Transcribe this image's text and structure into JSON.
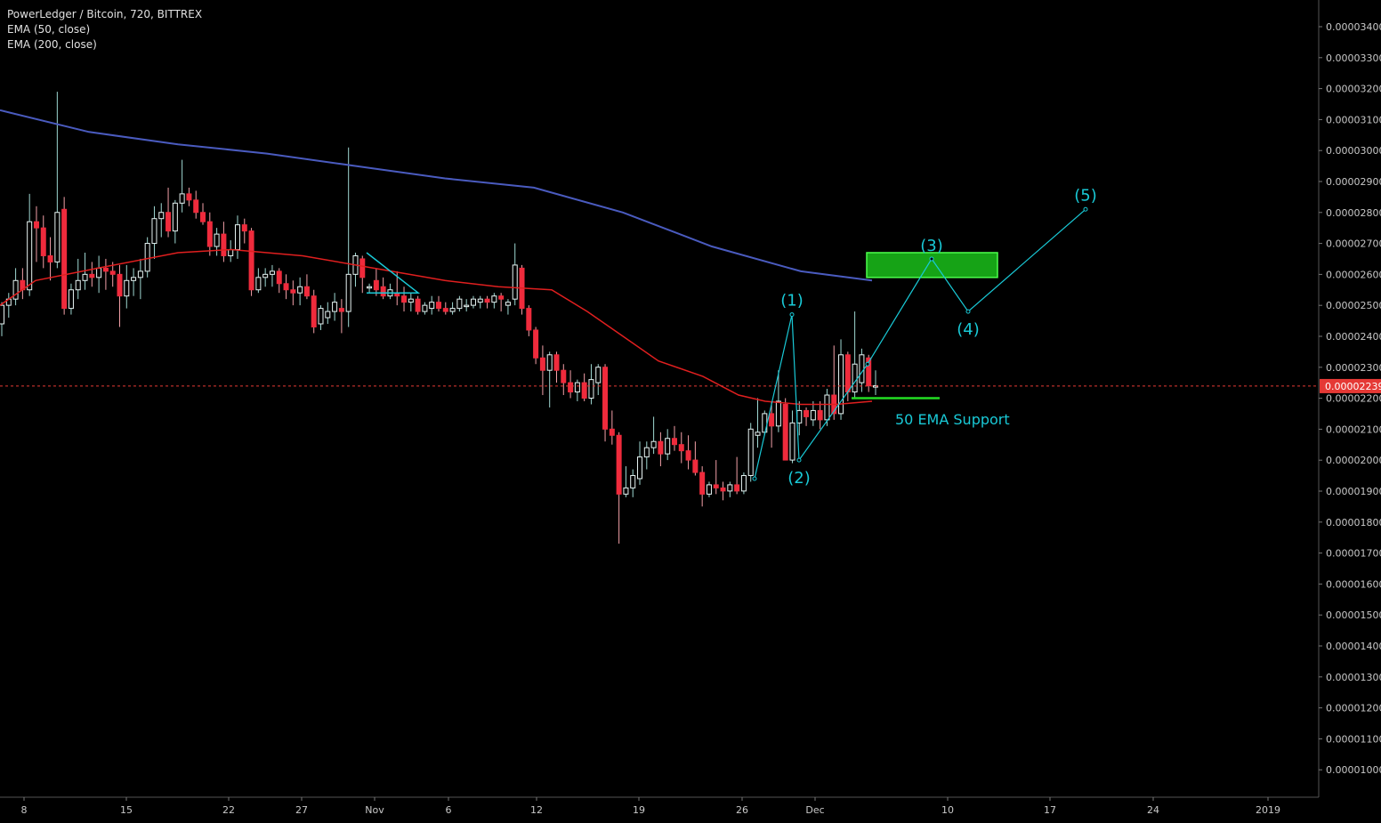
{
  "legend": {
    "title": "PowerLedger / Bitcoin, 720, BITTREX",
    "ema50": "EMA (50, close)",
    "ema200": "EMA (200, close)"
  },
  "colors": {
    "background": "#000000",
    "up": "#26a69a",
    "down": "#ef2b3c",
    "ema50": "#e01f1f",
    "ema200": "#4a5bbf",
    "annotation": "#19c9d6",
    "target_box": "#16a316",
    "support": "#22dd22",
    "price_line": "#e53935"
  },
  "price_axis": {
    "ticks": [
      "0.00003400",
      "0.00003300",
      "0.00003200",
      "0.00003100",
      "0.00003000",
      "0.00002900",
      "0.00002800",
      "0.00002700",
      "0.00002600",
      "0.00002500",
      "0.00002400",
      "0.00002300",
      "0.00002200",
      "0.00002100",
      "0.00002000",
      "0.00001900",
      "0.00001800",
      "0.00001700",
      "0.00001600",
      "0.00001500",
      "0.00001400",
      "0.00001300",
      "0.00001200",
      "0.00001100",
      "0.00001000"
    ],
    "current_price": "0.00002239"
  },
  "time_axis": {
    "labels": [
      "8",
      "15",
      "22",
      "27",
      "Nov",
      "6",
      "12",
      "19",
      "26",
      "Dec",
      "10",
      "17",
      "24",
      "2019"
    ]
  },
  "annotations": {
    "wave_labels": [
      "(1)",
      "(2)",
      "(3)",
      "(4)",
      "(5)"
    ],
    "support_text": "50 EMA Support"
  },
  "chart_data": {
    "type": "candlestick",
    "symbol": "PowerLedger / Bitcoin",
    "interval": "720",
    "exchange": "BITTREX",
    "ylim": [
      9.3e-06,
      3.49e-05
    ],
    "ylabel": "",
    "xlabel": "",
    "candles": [
      [
        2.44e-05,
        2.51e-05,
        2.4e-05,
        2.5e-05
      ],
      [
        2.5e-05,
        2.54e-05,
        2.46e-05,
        2.52e-05
      ],
      [
        2.52e-05,
        2.62e-05,
        2.5e-05,
        2.58e-05
      ],
      [
        2.58e-05,
        2.62e-05,
        2.52e-05,
        2.55e-05
      ],
      [
        2.55e-05,
        2.86e-05,
        2.53e-05,
        2.77e-05
      ],
      [
        2.77e-05,
        2.82e-05,
        2.64e-05,
        2.75e-05
      ],
      [
        2.75e-05,
        2.79e-05,
        2.62e-05,
        2.66e-05
      ],
      [
        2.66e-05,
        2.72e-05,
        2.58e-05,
        2.64e-05
      ],
      [
        2.64e-05,
        3.19e-05,
        2.62e-05,
        2.8e-05
      ],
      [
        2.81e-05,
        2.85e-05,
        2.47e-05,
        2.49e-05
      ],
      [
        2.49e-05,
        2.57e-05,
        2.47e-05,
        2.55e-05
      ],
      [
        2.55e-05,
        2.65e-05,
        2.52e-05,
        2.58e-05
      ],
      [
        2.58e-05,
        2.67e-05,
        2.55e-05,
        2.6e-05
      ],
      [
        2.6e-05,
        2.64e-05,
        2.56e-05,
        2.59e-05
      ],
      [
        2.59e-05,
        2.66e-05,
        2.54e-05,
        2.62e-05
      ],
      [
        2.62e-05,
        2.65e-05,
        2.55e-05,
        2.61e-05
      ],
      [
        2.61e-05,
        2.64e-05,
        2.56e-05,
        2.6e-05
      ],
      [
        2.6e-05,
        2.63e-05,
        2.43e-05,
        2.53e-05
      ],
      [
        2.53e-05,
        2.63e-05,
        2.49e-05,
        2.58e-05
      ],
      [
        2.58e-05,
        2.62e-05,
        2.53e-05,
        2.59e-05
      ],
      [
        2.59e-05,
        2.65e-05,
        2.52e-05,
        2.61e-05
      ],
      [
        2.61e-05,
        2.72e-05,
        2.59e-05,
        2.7e-05
      ],
      [
        2.7e-05,
        2.82e-05,
        2.65e-05,
        2.78e-05
      ],
      [
        2.78e-05,
        2.83e-05,
        2.72e-05,
        2.8e-05
      ],
      [
        2.8e-05,
        2.88e-05,
        2.72e-05,
        2.74e-05
      ],
      [
        2.74e-05,
        2.84e-05,
        2.7e-05,
        2.83e-05
      ],
      [
        2.83e-05,
        2.97e-05,
        2.8e-05,
        2.86e-05
      ],
      [
        2.86e-05,
        2.88e-05,
        2.82e-05,
        2.84e-05
      ],
      [
        2.84e-05,
        2.87e-05,
        2.78e-05,
        2.8e-05
      ],
      [
        2.8e-05,
        2.83e-05,
        2.76e-05,
        2.77e-05
      ],
      [
        2.77e-05,
        2.8e-05,
        2.66e-05,
        2.69e-05
      ],
      [
        2.69e-05,
        2.75e-05,
        2.66e-05,
        2.73e-05
      ],
      [
        2.73e-05,
        2.77e-05,
        2.64e-05,
        2.66e-05
      ],
      [
        2.66e-05,
        2.71e-05,
        2.64e-05,
        2.68e-05
      ],
      [
        2.68e-05,
        2.79e-05,
        2.65e-05,
        2.76e-05
      ],
      [
        2.76e-05,
        2.78e-05,
        2.7e-05,
        2.74e-05
      ],
      [
        2.74e-05,
        2.75e-05,
        2.53e-05,
        2.55e-05
      ],
      [
        2.55e-05,
        2.62e-05,
        2.54e-05,
        2.59e-05
      ],
      [
        2.59e-05,
        2.62e-05,
        2.56e-05,
        2.6e-05
      ],
      [
        2.6e-05,
        2.63e-05,
        2.56e-05,
        2.61e-05
      ],
      [
        2.61e-05,
        2.62e-05,
        2.54e-05,
        2.57e-05
      ],
      [
        2.57e-05,
        2.6e-05,
        2.52e-05,
        2.55e-05
      ],
      [
        2.55e-05,
        2.58e-05,
        2.5e-05,
        2.54e-05
      ],
      [
        2.54e-05,
        2.59e-05,
        2.5e-05,
        2.56e-05
      ],
      [
        2.56e-05,
        2.6e-05,
        2.52e-05,
        2.53e-05
      ],
      [
        2.53e-05,
        2.55e-05,
        2.41e-05,
        2.43e-05
      ],
      [
        2.44e-05,
        2.5e-05,
        2.42e-05,
        2.49e-05
      ],
      [
        2.46e-05,
        2.51e-05,
        2.44e-05,
        2.48e-05
      ],
      [
        2.48e-05,
        2.54e-05,
        2.45e-05,
        2.51e-05
      ],
      [
        2.49e-05,
        2.52e-05,
        2.41e-05,
        2.48e-05
      ],
      [
        2.48e-05,
        3.01e-05,
        2.43e-05,
        2.6e-05
      ],
      [
        2.6e-05,
        2.67e-05,
        2.56e-05,
        2.66e-05
      ],
      [
        2.65e-05,
        2.66e-05,
        2.54e-05,
        2.59e-05
      ],
      [
        2.56e-05,
        2.57e-05,
        2.54e-05,
        2.56e-05
      ],
      [
        2.58e-05,
        2.62e-05,
        2.53e-05,
        2.55e-05
      ],
      [
        2.56e-05,
        2.59e-05,
        2.52e-05,
        2.53e-05
      ],
      [
        2.53e-05,
        2.57e-05,
        2.52e-05,
        2.55e-05
      ],
      [
        2.54e-05,
        2.61e-05,
        2.5e-05,
        2.53e-05
      ],
      [
        2.53e-05,
        2.56e-05,
        2.48e-05,
        2.51e-05
      ],
      [
        2.51e-05,
        2.54e-05,
        2.48e-05,
        2.52e-05
      ],
      [
        2.52e-05,
        2.53e-05,
        2.47e-05,
        2.48e-05
      ],
      [
        2.48e-05,
        2.51e-05,
        2.47e-05,
        2.5e-05
      ],
      [
        2.49e-05,
        2.53e-05,
        2.47e-05,
        2.51e-05
      ],
      [
        2.51e-05,
        2.53e-05,
        2.48e-05,
        2.49e-05
      ],
      [
        2.49e-05,
        2.51e-05,
        2.47e-05,
        2.48e-05
      ],
      [
        2.48e-05,
        2.51e-05,
        2.47e-05,
        2.49e-05
      ],
      [
        2.49e-05,
        2.53e-05,
        2.48e-05,
        2.52e-05
      ],
      [
        2.5e-05,
        2.52e-05,
        2.48e-05,
        2.5e-05
      ],
      [
        2.5e-05,
        2.53e-05,
        2.49e-05,
        2.52e-05
      ],
      [
        2.51e-05,
        2.53e-05,
        2.49e-05,
        2.52e-05
      ],
      [
        2.52e-05,
        2.53e-05,
        2.49e-05,
        2.51e-05
      ],
      [
        2.51e-05,
        2.54e-05,
        2.49e-05,
        2.53e-05
      ],
      [
        2.53e-05,
        2.54e-05,
        2.48e-05,
        2.52e-05
      ],
      [
        2.5e-05,
        2.52e-05,
        2.47e-05,
        2.51e-05
      ],
      [
        2.52e-05,
        2.7e-05,
        2.5e-05,
        2.63e-05
      ],
      [
        2.62e-05,
        2.63e-05,
        2.47e-05,
        2.49e-05
      ],
      [
        2.49e-05,
        2.5e-05,
        2.4e-05,
        2.42e-05
      ],
      [
        2.42e-05,
        2.43e-05,
        2.31e-05,
        2.33e-05
      ],
      [
        2.33e-05,
        2.37e-05,
        2.21e-05,
        2.29e-05
      ],
      [
        2.29e-05,
        2.35e-05,
        2.17e-05,
        2.34e-05
      ],
      [
        2.34e-05,
        2.35e-05,
        2.25e-05,
        2.29e-05
      ],
      [
        2.29e-05,
        2.31e-05,
        2.21e-05,
        2.25e-05
      ],
      [
        2.25e-05,
        2.29e-05,
        2.2e-05,
        2.22e-05
      ],
      [
        2.22e-05,
        2.26e-05,
        2.19e-05,
        2.25e-05
      ],
      [
        2.25e-05,
        2.28e-05,
        2.19e-05,
        2.2e-05
      ],
      [
        2.2e-05,
        2.31e-05,
        2.18e-05,
        2.26e-05
      ],
      [
        2.25e-05,
        2.31e-05,
        2.21e-05,
        2.3e-05
      ],
      [
        2.3e-05,
        2.31e-05,
        2.06e-05,
        2.1e-05
      ],
      [
        2.1e-05,
        2.16e-05,
        2.05e-05,
        2.08e-05
      ],
      [
        2.08e-05,
        2.09e-05,
        1.73e-05,
        1.89e-05
      ],
      [
        1.89e-05,
        1.98e-05,
        1.88e-05,
        1.91e-05
      ],
      [
        1.91e-05,
        1.97e-05,
        1.88e-05,
        1.95e-05
      ],
      [
        1.94e-05,
        2.06e-05,
        1.92e-05,
        2.01e-05
      ],
      [
        2.01e-05,
        2.06e-05,
        1.97e-05,
        2.04e-05
      ],
      [
        2.04e-05,
        2.14e-05,
        2.02e-05,
        2.06e-05
      ],
      [
        2.06e-05,
        2.09e-05,
        1.98e-05,
        2.02e-05
      ],
      [
        2.02e-05,
        2.1e-05,
        2e-05,
        2.07e-05
      ],
      [
        2.07e-05,
        2.11e-05,
        2.03e-05,
        2.05e-05
      ],
      [
        2.05e-05,
        2.09e-05,
        1.99e-05,
        2.03e-05
      ],
      [
        2.03e-05,
        2.08e-05,
        1.97e-05,
        2e-05
      ],
      [
        2e-05,
        2.06e-05,
        1.95e-05,
        1.96e-05
      ],
      [
        1.96e-05,
        1.98e-05,
        1.85e-05,
        1.89e-05
      ],
      [
        1.89e-05,
        1.93e-05,
        1.88e-05,
        1.92e-05
      ],
      [
        1.92e-05,
        2e-05,
        1.89e-05,
        1.91e-05
      ],
      [
        1.91e-05,
        1.93e-05,
        1.87e-05,
        1.9e-05
      ],
      [
        1.9e-05,
        1.93e-05,
        1.88e-05,
        1.92e-05
      ],
      [
        1.92e-05,
        2.01e-05,
        1.89e-05,
        1.9e-05
      ],
      [
        1.9e-05,
        1.96e-05,
        1.89e-05,
        1.95e-05
      ],
      [
        1.95e-05,
        2.12e-05,
        1.93e-05,
        2.1e-05
      ],
      [
        2.08e-05,
        2.2e-05,
        2.04e-05,
        2.09e-05
      ],
      [
        2.09e-05,
        2.16e-05,
        2.08e-05,
        2.15e-05
      ],
      [
        2.15e-05,
        2.19e-05,
        2.04e-05,
        2.11e-05
      ],
      [
        2.11e-05,
        2.29e-05,
        2.09e-05,
        2.19e-05
      ],
      [
        2.18e-05,
        2.2e-05,
        2e-05,
        2e-05
      ],
      [
        2e-05,
        2.16e-05,
        1.99e-05,
        2.12e-05
      ],
      [
        2.12e-05,
        2.19e-05,
        2.08e-05,
        2.16e-05
      ],
      [
        2.16e-05,
        2.17e-05,
        2.11e-05,
        2.14e-05
      ],
      [
        2.13e-05,
        2.19e-05,
        2.11e-05,
        2.16e-05
      ],
      [
        2.16e-05,
        2.19e-05,
        2.1e-05,
        2.13e-05
      ],
      [
        2.13e-05,
        2.23e-05,
        2.11e-05,
        2.21e-05
      ],
      [
        2.21e-05,
        2.37e-05,
        2.13e-05,
        2.15e-05
      ],
      [
        2.15e-05,
        2.39e-05,
        2.13e-05,
        2.34e-05
      ],
      [
        2.34e-05,
        2.35e-05,
        2.19e-05,
        2.22e-05
      ],
      [
        2.22e-05,
        2.48e-05,
        2.2e-05,
        2.31e-05
      ],
      [
        2.25e-05,
        2.36e-05,
        2.22e-05,
        2.34e-05
      ],
      [
        2.33e-05,
        2.34e-05,
        2.22e-05,
        2.24e-05
      ],
      [
        2.24e-05,
        2.29e-05,
        2.21e-05,
        2.24e-05
      ]
    ],
    "ema50": [
      [
        0,
        2.5e-05
      ],
      [
        40,
        2.58e-05
      ],
      [
        110,
        2.62e-05
      ],
      [
        200,
        2.67e-05
      ],
      [
        260,
        2.68e-05
      ],
      [
        340,
        2.66e-05
      ],
      [
        420,
        2.62e-05
      ],
      [
        500,
        2.58e-05
      ],
      [
        560,
        2.56e-05
      ],
      [
        620,
        2.55e-05
      ],
      [
        660,
        2.48e-05
      ],
      [
        700,
        2.4e-05
      ],
      [
        740,
        2.32e-05
      ],
      [
        790,
        2.27e-05
      ],
      [
        830,
        2.21e-05
      ],
      [
        860,
        2.19e-05
      ],
      [
        900,
        2.18e-05
      ],
      [
        940,
        2.18e-05
      ],
      [
        980,
        2.19e-05
      ]
    ],
    "ema200": [
      [
        0,
        3.13e-05
      ],
      [
        100,
        3.06e-05
      ],
      [
        200,
        3.02e-05
      ],
      [
        300,
        2.99e-05
      ],
      [
        400,
        2.95e-05
      ],
      [
        500,
        2.91e-05
      ],
      [
        600,
        2.88e-05
      ],
      [
        700,
        2.8e-05
      ],
      [
        800,
        2.69e-05
      ],
      [
        900,
        2.61e-05
      ],
      [
        980,
        2.58e-05
      ]
    ],
    "wave_points": [
      [
        848,
        1.94e-05
      ],
      [
        890,
        2.47e-05
      ],
      [
        898,
        2e-05
      ],
      [
        975,
        2.31e-05
      ],
      [
        1047,
        2.65e-05
      ],
      [
        1088,
        2.48e-05
      ],
      [
        1220,
        2.81e-05
      ]
    ],
    "triangle": [
      [
        412,
        2.67e-05
      ],
      [
        470,
        2.54e-05
      ],
      [
        412,
        2.54e-05
      ]
    ],
    "target_zone": {
      "x1": 974,
      "x2": 1121,
      "top": 2.67e-05,
      "bottom": 2.59e-05
    },
    "support_level": {
      "x1": 957,
      "x2": 1056,
      "price": 2.2e-05
    },
    "current_price_value": 2.239e-05
  }
}
